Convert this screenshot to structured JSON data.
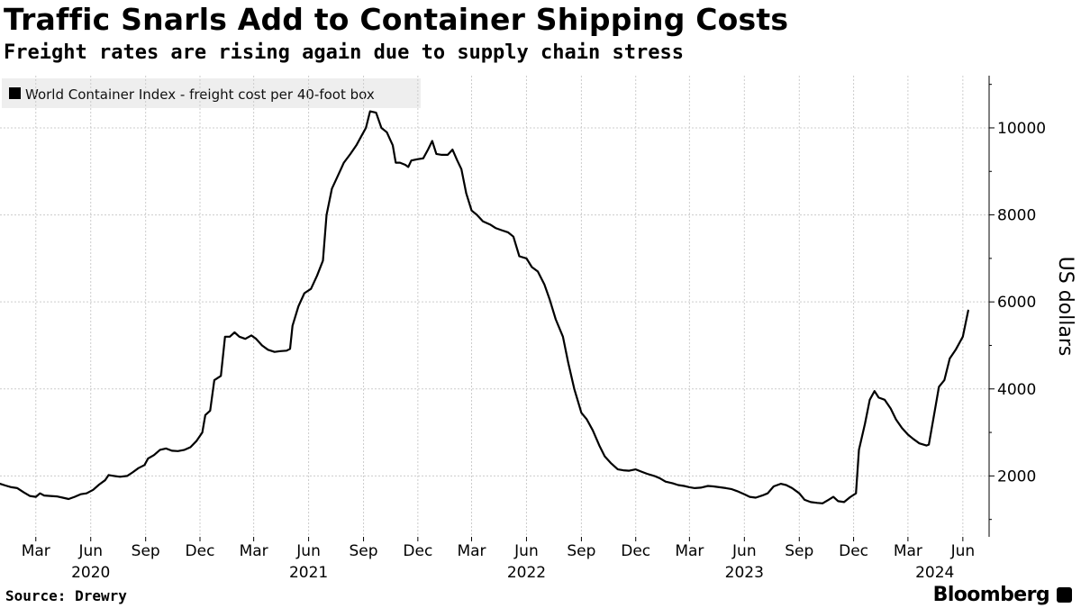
{
  "header": {
    "title": "Traffic Snarls Add to Container Shipping Costs",
    "subtitle": "Freight rates are rising again due to supply chain stress"
  },
  "footer": {
    "source": "Source: Drewry",
    "brand": "Bloomberg"
  },
  "colors": {
    "line": "#000000",
    "grid": "#cccccc",
    "legend_bg": "#eeeeee"
  },
  "chart_data": {
    "type": "line",
    "title": "Traffic Snarls Add to Container Shipping Costs",
    "subtitle": "Freight rates are rising again due to supply chain stress",
    "ylabel": "US dollars",
    "xlabel": "",
    "ylim": [
      600,
      11200
    ],
    "yticks": [
      2000,
      4000,
      6000,
      8000,
      10000
    ],
    "xlim": [
      "2020-01-01",
      "2024-07-15"
    ],
    "grid": true,
    "legend_position": "top-left",
    "x_ticks": [
      {
        "date": "2020-03-01",
        "label": "Mar"
      },
      {
        "date": "2020-06-01",
        "label": "Jun"
      },
      {
        "date": "2020-09-01",
        "label": "Sep"
      },
      {
        "date": "2020-12-01",
        "label": "Dec"
      },
      {
        "date": "2021-03-01",
        "label": "Mar"
      },
      {
        "date": "2021-06-01",
        "label": "Jun"
      },
      {
        "date": "2021-09-01",
        "label": "Sep"
      },
      {
        "date": "2021-12-01",
        "label": "Dec"
      },
      {
        "date": "2022-03-01",
        "label": "Mar"
      },
      {
        "date": "2022-06-01",
        "label": "Jun"
      },
      {
        "date": "2022-09-01",
        "label": "Sep"
      },
      {
        "date": "2022-12-01",
        "label": "Dec"
      },
      {
        "date": "2023-03-01",
        "label": "Mar"
      },
      {
        "date": "2023-06-01",
        "label": "Jun"
      },
      {
        "date": "2023-09-01",
        "label": "Sep"
      },
      {
        "date": "2023-12-01",
        "label": "Dec"
      },
      {
        "date": "2024-03-01",
        "label": "Mar"
      },
      {
        "date": "2024-06-01",
        "label": "Jun"
      }
    ],
    "year_labels": [
      {
        "date": "2020-06-01",
        "label": "2020"
      },
      {
        "date": "2021-06-01",
        "label": "2021"
      },
      {
        "date": "2022-06-01",
        "label": "2022"
      },
      {
        "date": "2023-06-01",
        "label": "2023"
      },
      {
        "date": "2024-04-15",
        "label": "2024"
      }
    ],
    "series": [
      {
        "name": "World Container Index - freight cost per 40-foot box",
        "points": [
          [
            "2020-01-01",
            1820
          ],
          [
            "2020-01-10",
            1780
          ],
          [
            "2020-01-20",
            1740
          ],
          [
            "2020-01-30",
            1720
          ],
          [
            "2020-02-10",
            1620
          ],
          [
            "2020-02-20",
            1540
          ],
          [
            "2020-03-01",
            1520
          ],
          [
            "2020-03-08",
            1600
          ],
          [
            "2020-03-15",
            1550
          ],
          [
            "2020-03-25",
            1540
          ],
          [
            "2020-04-05",
            1530
          ],
          [
            "2020-04-15",
            1500
          ],
          [
            "2020-04-25",
            1470
          ],
          [
            "2020-05-05",
            1520
          ],
          [
            "2020-05-15",
            1580
          ],
          [
            "2020-05-25",
            1600
          ],
          [
            "2020-06-05",
            1680
          ],
          [
            "2020-06-15",
            1800
          ],
          [
            "2020-06-25",
            1900
          ],
          [
            "2020-07-01",
            2020
          ],
          [
            "2020-07-10",
            2000
          ],
          [
            "2020-07-20",
            1980
          ],
          [
            "2020-08-01",
            2000
          ],
          [
            "2020-08-10",
            2080
          ],
          [
            "2020-08-20",
            2180
          ],
          [
            "2020-08-30",
            2250
          ],
          [
            "2020-09-05",
            2400
          ],
          [
            "2020-09-15",
            2480
          ],
          [
            "2020-09-25",
            2600
          ],
          [
            "2020-10-05",
            2630
          ],
          [
            "2020-10-15",
            2580
          ],
          [
            "2020-10-25",
            2570
          ],
          [
            "2020-11-05",
            2600
          ],
          [
            "2020-11-15",
            2660
          ],
          [
            "2020-11-25",
            2800
          ],
          [
            "2020-12-05",
            3000
          ],
          [
            "2020-12-10",
            3400
          ],
          [
            "2020-12-18",
            3500
          ],
          [
            "2020-12-25",
            4200
          ],
          [
            "2021-01-05",
            4300
          ],
          [
            "2021-01-12",
            5200
          ],
          [
            "2021-01-20",
            5200
          ],
          [
            "2021-01-28",
            5300
          ],
          [
            "2021-02-05",
            5200
          ],
          [
            "2021-02-15",
            5150
          ],
          [
            "2021-02-25",
            5230
          ],
          [
            "2021-03-05",
            5150
          ],
          [
            "2021-03-15",
            5000
          ],
          [
            "2021-03-25",
            4900
          ],
          [
            "2021-04-05",
            4850
          ],
          [
            "2021-04-15",
            4870
          ],
          [
            "2021-04-25",
            4880
          ],
          [
            "2021-05-01",
            4920
          ],
          [
            "2021-05-05",
            5450
          ],
          [
            "2021-05-15",
            5900
          ],
          [
            "2021-05-25",
            6200
          ],
          [
            "2021-06-05",
            6300
          ],
          [
            "2021-06-15",
            6600
          ],
          [
            "2021-06-25",
            6950
          ],
          [
            "2021-07-01",
            8000
          ],
          [
            "2021-07-10",
            8600
          ],
          [
            "2021-07-20",
            8900
          ],
          [
            "2021-07-30",
            9200
          ],
          [
            "2021-08-10",
            9400
          ],
          [
            "2021-08-20",
            9600
          ],
          [
            "2021-08-30",
            9850
          ],
          [
            "2021-09-05",
            10000
          ],
          [
            "2021-09-12",
            10380
          ],
          [
            "2021-09-22",
            10350
          ],
          [
            "2021-10-01",
            10000
          ],
          [
            "2021-10-10",
            9900
          ],
          [
            "2021-10-20",
            9600
          ],
          [
            "2021-10-25",
            9200
          ],
          [
            "2021-11-01",
            9200
          ],
          [
            "2021-11-10",
            9150
          ],
          [
            "2021-11-15",
            9100
          ],
          [
            "2021-11-20",
            9250
          ],
          [
            "2021-12-01",
            9280
          ],
          [
            "2021-12-10",
            9300
          ],
          [
            "2021-12-18",
            9500
          ],
          [
            "2021-12-25",
            9700
          ],
          [
            "2022-01-01",
            9400
          ],
          [
            "2022-01-10",
            9380
          ],
          [
            "2022-01-20",
            9380
          ],
          [
            "2022-01-28",
            9500
          ],
          [
            "2022-02-05",
            9250
          ],
          [
            "2022-02-12",
            9050
          ],
          [
            "2022-02-20",
            8500
          ],
          [
            "2022-03-01",
            8100
          ],
          [
            "2022-03-10",
            8000
          ],
          [
            "2022-03-20",
            7850
          ],
          [
            "2022-04-01",
            7780
          ],
          [
            "2022-04-10",
            7700
          ],
          [
            "2022-04-20",
            7650
          ],
          [
            "2022-05-01",
            7600
          ],
          [
            "2022-05-10",
            7500
          ],
          [
            "2022-05-20",
            7050
          ],
          [
            "2022-06-01",
            7000
          ],
          [
            "2022-06-10",
            6800
          ],
          [
            "2022-06-20",
            6700
          ],
          [
            "2022-07-01",
            6400
          ],
          [
            "2022-07-10",
            6050
          ],
          [
            "2022-07-20",
            5600
          ],
          [
            "2022-08-01",
            5200
          ],
          [
            "2022-08-10",
            4600
          ],
          [
            "2022-08-20",
            4000
          ],
          [
            "2022-09-01",
            3450
          ],
          [
            "2022-09-10",
            3300
          ],
          [
            "2022-09-20",
            3050
          ],
          [
            "2022-10-01",
            2700
          ],
          [
            "2022-10-10",
            2450
          ],
          [
            "2022-10-20",
            2300
          ],
          [
            "2022-11-01",
            2150
          ],
          [
            "2022-11-10",
            2130
          ],
          [
            "2022-11-20",
            2120
          ],
          [
            "2022-12-01",
            2150
          ],
          [
            "2022-12-10",
            2100
          ],
          [
            "2022-12-20",
            2050
          ],
          [
            "2023-01-01",
            2000
          ],
          [
            "2023-01-10",
            1950
          ],
          [
            "2023-01-20",
            1870
          ],
          [
            "2023-02-01",
            1830
          ],
          [
            "2023-02-10",
            1790
          ],
          [
            "2023-02-20",
            1770
          ],
          [
            "2023-03-01",
            1740
          ],
          [
            "2023-03-10",
            1720
          ],
          [
            "2023-03-20",
            1730
          ],
          [
            "2023-04-01",
            1770
          ],
          [
            "2023-04-10",
            1760
          ],
          [
            "2023-04-20",
            1740
          ],
          [
            "2023-05-01",
            1720
          ],
          [
            "2023-05-10",
            1700
          ],
          [
            "2023-05-20",
            1650
          ],
          [
            "2023-06-01",
            1580
          ],
          [
            "2023-06-10",
            1520
          ],
          [
            "2023-06-20",
            1500
          ],
          [
            "2023-07-01",
            1550
          ],
          [
            "2023-07-10",
            1600
          ],
          [
            "2023-07-20",
            1760
          ],
          [
            "2023-08-01",
            1820
          ],
          [
            "2023-08-10",
            1790
          ],
          [
            "2023-08-20",
            1720
          ],
          [
            "2023-09-01",
            1600
          ],
          [
            "2023-09-10",
            1450
          ],
          [
            "2023-09-20",
            1400
          ],
          [
            "2023-10-01",
            1380
          ],
          [
            "2023-10-10",
            1370
          ],
          [
            "2023-10-20",
            1450
          ],
          [
            "2023-10-28",
            1520
          ],
          [
            "2023-11-05",
            1420
          ],
          [
            "2023-11-15",
            1400
          ],
          [
            "2023-11-25",
            1510
          ],
          [
            "2023-12-05",
            1600
          ],
          [
            "2023-12-10",
            2600
          ],
          [
            "2023-12-20",
            3200
          ],
          [
            "2023-12-28",
            3750
          ],
          [
            "2024-01-05",
            3950
          ],
          [
            "2024-01-12",
            3800
          ],
          [
            "2024-01-22",
            3750
          ],
          [
            "2024-02-01",
            3550
          ],
          [
            "2024-02-10",
            3300
          ],
          [
            "2024-02-20",
            3100
          ],
          [
            "2024-03-01",
            2950
          ],
          [
            "2024-03-10",
            2850
          ],
          [
            "2024-03-20",
            2750
          ],
          [
            "2024-04-01",
            2700
          ],
          [
            "2024-04-05",
            2720
          ],
          [
            "2024-04-15",
            3500
          ],
          [
            "2024-04-22",
            4050
          ],
          [
            "2024-05-01",
            4200
          ],
          [
            "2024-05-10",
            4700
          ],
          [
            "2024-05-20",
            4900
          ],
          [
            "2024-06-01",
            5200
          ],
          [
            "2024-06-10",
            5800
          ]
        ]
      }
    ]
  }
}
